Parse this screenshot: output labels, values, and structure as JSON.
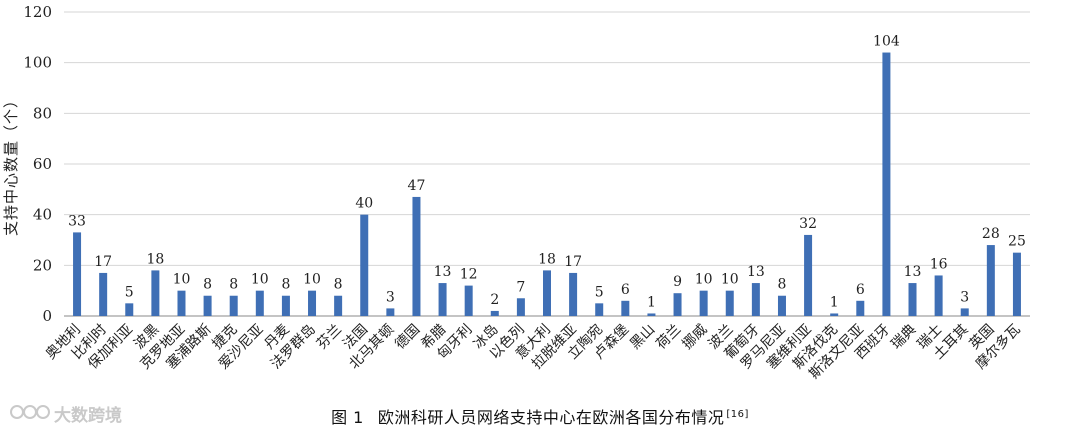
{
  "caption": {
    "figure_number": "图 1",
    "text": "欧洲科研人员网络支持中心在欧洲各国分布情况",
    "reference": "[16]"
  },
  "watermark": {
    "text": "大数跨境"
  },
  "colors": {
    "bar": "#3f6fb5",
    "grid": "#d6d6d6",
    "axis": "#8a8a8a"
  },
  "chart_data": {
    "type": "bar",
    "ylabel": "支持中心数量（个）",
    "xlabel": "",
    "ylim": [
      0,
      120
    ],
    "yticks": [
      0,
      20,
      40,
      60,
      80,
      100,
      120
    ],
    "grid": true,
    "data_labels": true,
    "categories": [
      "奥地利",
      "比利时",
      "保加利亚",
      "波黑",
      "克罗地亚",
      "塞浦路斯",
      "捷克",
      "爱沙尼亚",
      "丹麦",
      "法罗群岛",
      "芬兰",
      "法国",
      "北马其顿",
      "德国",
      "希腊",
      "匈牙利",
      "冰岛",
      "以色列",
      "意大利",
      "拉脱维亚",
      "立陶宛",
      "卢森堡",
      "黑山",
      "荷兰",
      "挪威",
      "波兰",
      "葡萄牙",
      "罗马尼亚",
      "塞维利亚",
      "斯洛伐克",
      "斯洛文尼亚",
      "西班牙",
      "瑞典",
      "瑞士",
      "土耳其",
      "英国",
      "摩尔多瓦"
    ],
    "values": [
      33,
      17,
      5,
      18,
      10,
      8,
      8,
      10,
      8,
      10,
      8,
      40,
      3,
      47,
      13,
      12,
      2,
      7,
      18,
      17,
      5,
      6,
      1,
      9,
      10,
      10,
      13,
      8,
      32,
      1,
      6,
      104,
      13,
      16,
      3,
      28,
      25
    ]
  }
}
